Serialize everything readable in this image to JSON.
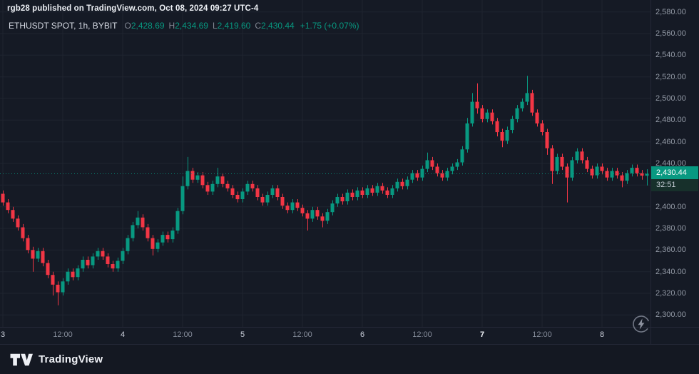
{
  "header": {
    "attribution": "rgb28 published on TradingView.com, Oct 08, 2024 09:27 UTC-4"
  },
  "legend": {
    "symbol": "ETHUSDT SPOT, 1h, BYBIT",
    "open_label": "O",
    "open": "2,428.69",
    "high_label": "H",
    "high": "2,434.69",
    "low_label": "L",
    "low": "2,419.60",
    "close_label": "C",
    "close": "2,430.44",
    "change": "+1.75 (+0.07%)"
  },
  "footer": {
    "brand": "TradingView"
  },
  "colors": {
    "background": "#151a25",
    "grid": "#1f2430",
    "up": "#089981",
    "down": "#f23645",
    "axis_text": "#9299a5",
    "badge": "#089981",
    "price_line": "#089981"
  },
  "chart_data": {
    "type": "candlestick",
    "title": "ETHUSDT SPOT, 1h, BYBIT",
    "symbol": "ETHUSDT",
    "market": "SPOT",
    "interval": "1h",
    "exchange": "BYBIT",
    "last_bar": {
      "open": 2428.69,
      "high": 2434.69,
      "low": 2419.6,
      "close": 2430.44,
      "change": "+1.75 (+0.07%)"
    },
    "last_price": 2430.44,
    "last_price_label": "2,430.44",
    "countdown": "32:51",
    "price_axis": {
      "render_min": 2289,
      "render_max": 2591,
      "tick_step": 20,
      "ticks": [
        {
          "value": 2580,
          "label": "2,580.00"
        },
        {
          "value": 2560,
          "label": "2,560.00"
        },
        {
          "value": 2540,
          "label": "2,540.00"
        },
        {
          "value": 2520,
          "label": "2,520.00"
        },
        {
          "value": 2500,
          "label": "2,500.00"
        },
        {
          "value": 2480,
          "label": "2,480.00"
        },
        {
          "value": 2460,
          "label": "2,460.00"
        },
        {
          "value": 2440,
          "label": "2,440.00"
        },
        {
          "value": 2420,
          "label": "2,420.00"
        },
        {
          "value": 2400,
          "label": "2,400.00"
        },
        {
          "value": 2380,
          "label": "2,380.00"
        },
        {
          "value": 2360,
          "label": "2,360.00"
        },
        {
          "value": 2340,
          "label": "2,340.00"
        },
        {
          "value": 2320,
          "label": "2,320.00"
        },
        {
          "value": 2300,
          "label": "2,300.00"
        }
      ]
    },
    "time_axis": {
      "ticks": [
        {
          "index": 0,
          "label": "3",
          "kind": "day"
        },
        {
          "index": 12,
          "label": "12:00",
          "kind": "hour"
        },
        {
          "index": 24,
          "label": "4",
          "kind": "day"
        },
        {
          "index": 36,
          "label": "12:00",
          "kind": "hour"
        },
        {
          "index": 48,
          "label": "5",
          "kind": "day"
        },
        {
          "index": 60,
          "label": "12:00",
          "kind": "hour"
        },
        {
          "index": 72,
          "label": "6",
          "kind": "day"
        },
        {
          "index": 84,
          "label": "12:00",
          "kind": "hour"
        },
        {
          "index": 96,
          "label": "7",
          "kind": "day",
          "emphasis": true
        },
        {
          "index": 108,
          "label": "12:00",
          "kind": "hour"
        },
        {
          "index": 120,
          "label": "8",
          "kind": "day"
        }
      ]
    },
    "candles": [
      [
        2412,
        2415,
        2401,
        2404
      ],
      [
        2404,
        2407,
        2394,
        2397
      ],
      [
        2397,
        2400,
        2386,
        2389
      ],
      [
        2389,
        2392,
        2378,
        2381
      ],
      [
        2381,
        2384,
        2368,
        2371
      ],
      [
        2371,
        2374,
        2357,
        2360
      ],
      [
        2360,
        2363,
        2340,
        2352
      ],
      [
        2352,
        2362,
        2349,
        2359
      ],
      [
        2359,
        2362,
        2345,
        2348
      ],
      [
        2348,
        2351,
        2334,
        2337
      ],
      [
        2337,
        2340,
        2318,
        2328
      ],
      [
        2328,
        2331,
        2309,
        2321
      ],
      [
        2321,
        2334,
        2318,
        2331
      ],
      [
        2331,
        2343,
        2328,
        2340
      ],
      [
        2340,
        2343,
        2332,
        2335
      ],
      [
        2335,
        2346,
        2332,
        2343
      ],
      [
        2343,
        2354,
        2340,
        2351
      ],
      [
        2351,
        2354,
        2343,
        2346
      ],
      [
        2346,
        2357,
        2343,
        2354
      ],
      [
        2354,
        2362,
        2351,
        2359
      ],
      [
        2359,
        2362,
        2351,
        2354
      ],
      [
        2354,
        2357,
        2344,
        2347
      ],
      [
        2347,
        2350,
        2340,
        2343
      ],
      [
        2343,
        2353,
        2340,
        2350
      ],
      [
        2350,
        2362,
        2347,
        2359
      ],
      [
        2359,
        2374,
        2356,
        2371
      ],
      [
        2371,
        2386,
        2368,
        2383
      ],
      [
        2383,
        2396,
        2380,
        2390
      ],
      [
        2390,
        2393,
        2378,
        2381
      ],
      [
        2381,
        2384,
        2368,
        2371
      ],
      [
        2371,
        2374,
        2355,
        2361
      ],
      [
        2361,
        2370,
        2358,
        2367
      ],
      [
        2367,
        2377,
        2364,
        2374
      ],
      [
        2374,
        2377,
        2367,
        2370
      ],
      [
        2370,
        2381,
        2367,
        2378
      ],
      [
        2378,
        2399,
        2375,
        2396
      ],
      [
        2396,
        2428,
        2393,
        2419
      ],
      [
        2419,
        2446,
        2416,
        2433
      ],
      [
        2433,
        2436,
        2422,
        2425
      ],
      [
        2425,
        2432,
        2422,
        2429
      ],
      [
        2429,
        2432,
        2417,
        2420
      ],
      [
        2420,
        2423,
        2411,
        2414
      ],
      [
        2414,
        2424,
        2411,
        2421
      ],
      [
        2421,
        2436,
        2418,
        2428
      ],
      [
        2428,
        2431,
        2418,
        2421
      ],
      [
        2421,
        2424,
        2414,
        2417
      ],
      [
        2417,
        2420,
        2408,
        2411
      ],
      [
        2411,
        2414,
        2404,
        2407
      ],
      [
        2407,
        2417,
        2404,
        2414
      ],
      [
        2414,
        2424,
        2411,
        2421
      ],
      [
        2421,
        2424,
        2414,
        2417
      ],
      [
        2417,
        2420,
        2406,
        2409
      ],
      [
        2409,
        2412,
        2401,
        2404
      ],
      [
        2404,
        2414,
        2401,
        2411
      ],
      [
        2411,
        2420,
        2408,
        2417
      ],
      [
        2417,
        2420,
        2406,
        2409
      ],
      [
        2409,
        2412,
        2398,
        2401
      ],
      [
        2401,
        2404,
        2394,
        2397
      ],
      [
        2397,
        2407,
        2394,
        2404
      ],
      [
        2404,
        2407,
        2396,
        2399
      ],
      [
        2399,
        2402,
        2391,
        2394
      ],
      [
        2394,
        2397,
        2378,
        2389
      ],
      [
        2389,
        2400,
        2386,
        2397
      ],
      [
        2397,
        2400,
        2388,
        2391
      ],
      [
        2391,
        2394,
        2381,
        2387
      ],
      [
        2387,
        2398,
        2384,
        2395
      ],
      [
        2395,
        2406,
        2392,
        2403
      ],
      [
        2403,
        2412,
        2400,
        2409
      ],
      [
        2409,
        2412,
        2402,
        2405
      ],
      [
        2405,
        2416,
        2402,
        2413
      ],
      [
        2413,
        2416,
        2406,
        2409
      ],
      [
        2409,
        2418,
        2406,
        2415
      ],
      [
        2415,
        2418,
        2408,
        2411
      ],
      [
        2411,
        2420,
        2408,
        2417
      ],
      [
        2417,
        2420,
        2410,
        2413
      ],
      [
        2413,
        2422,
        2410,
        2419
      ],
      [
        2419,
        2422,
        2412,
        2415
      ],
      [
        2415,
        2418,
        2408,
        2411
      ],
      [
        2411,
        2420,
        2408,
        2417
      ],
      [
        2417,
        2426,
        2414,
        2423
      ],
      [
        2423,
        2426,
        2416,
        2419
      ],
      [
        2419,
        2428,
        2416,
        2425
      ],
      [
        2425,
        2434,
        2422,
        2431
      ],
      [
        2431,
        2434,
        2424,
        2427
      ],
      [
        2427,
        2438,
        2424,
        2435
      ],
      [
        2435,
        2450,
        2432,
        2443
      ],
      [
        2443,
        2446,
        2434,
        2437
      ],
      [
        2437,
        2440,
        2428,
        2431
      ],
      [
        2431,
        2434,
        2424,
        2427
      ],
      [
        2427,
        2436,
        2424,
        2433
      ],
      [
        2433,
        2440,
        2430,
        2437
      ],
      [
        2437,
        2444,
        2434,
        2441
      ],
      [
        2441,
        2456,
        2438,
        2453
      ],
      [
        2453,
        2482,
        2450,
        2477
      ],
      [
        2477,
        2505,
        2474,
        2497
      ],
      [
        2497,
        2514,
        2486,
        2491
      ],
      [
        2491,
        2494,
        2478,
        2481
      ],
      [
        2481,
        2490,
        2478,
        2487
      ],
      [
        2487,
        2490,
        2476,
        2479
      ],
      [
        2479,
        2482,
        2465,
        2469
      ],
      [
        2469,
        2472,
        2455,
        2461
      ],
      [
        2461,
        2474,
        2458,
        2471
      ],
      [
        2471,
        2484,
        2468,
        2481
      ],
      [
        2481,
        2494,
        2478,
        2491
      ],
      [
        2491,
        2500,
        2488,
        2497
      ],
      [
        2497,
        2521,
        2494,
        2505
      ],
      [
        2505,
        2508,
        2484,
        2487
      ],
      [
        2487,
        2490,
        2474,
        2477
      ],
      [
        2477,
        2480,
        2466,
        2469
      ],
      [
        2469,
        2472,
        2448,
        2454
      ],
      [
        2454,
        2457,
        2421,
        2433
      ],
      [
        2433,
        2449,
        2430,
        2446
      ],
      [
        2446,
        2449,
        2434,
        2437
      ],
      [
        2437,
        2440,
        2404,
        2427
      ],
      [
        2427,
        2446,
        2424,
        2443
      ],
      [
        2443,
        2454,
        2440,
        2451
      ],
      [
        2451,
        2454,
        2440,
        2443
      ],
      [
        2443,
        2446,
        2432,
        2435
      ],
      [
        2435,
        2438,
        2426,
        2429
      ],
      [
        2429,
        2440,
        2426,
        2437
      ],
      [
        2437,
        2440,
        2430,
        2433
      ],
      [
        2433,
        2436,
        2424,
        2427
      ],
      [
        2427,
        2436,
        2424,
        2433
      ],
      [
        2433,
        2436,
        2426,
        2429
      ],
      [
        2429,
        2432,
        2418,
        2424
      ],
      [
        2424,
        2434,
        2421,
        2431
      ],
      [
        2431,
        2439,
        2428,
        2436
      ],
      [
        2436,
        2439,
        2428,
        2431
      ],
      [
        2431,
        2434,
        2425,
        2428.69
      ],
      [
        2428.69,
        2434.69,
        2419.6,
        2430.44
      ]
    ]
  }
}
